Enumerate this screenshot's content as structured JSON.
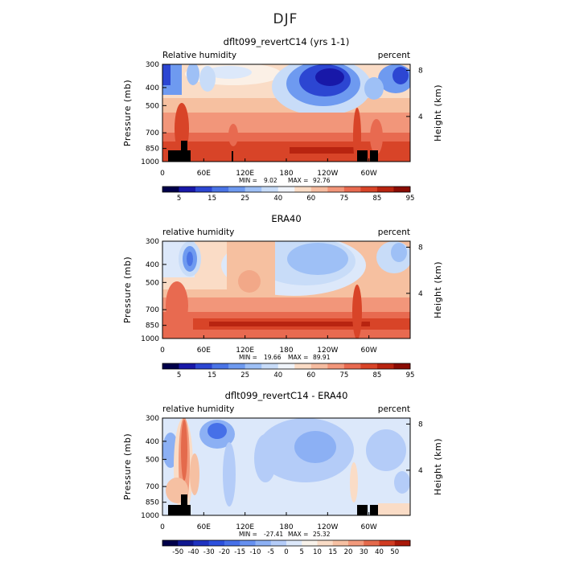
{
  "figure_title": "DJF",
  "chart_data": [
    {
      "type": "heatmap",
      "title": "dflt099_revertC14 (yrs 1-1)",
      "left_label": "Relative humidity",
      "right_label": "percent",
      "ylabel": "Pressure (mb)",
      "y2label": "Height (km)",
      "y_ticks": [
        "300",
        "400",
        "500",
        "700",
        "850",
        "1000"
      ],
      "y2_ticks": [
        "8",
        "4"
      ],
      "x_ticks": [
        "0",
        "60E",
        "120E",
        "180",
        "120W",
        "60W"
      ],
      "stats": {
        "min_label": "MIN =",
        "min": "9.02",
        "max_label": "MAX =",
        "max": "92.76"
      },
      "colorbar_labels": [
        "5",
        "15",
        "25",
        "40",
        "60",
        "75",
        "85",
        "95"
      ],
      "colors": [
        "#00004a",
        "#1818a8",
        "#2c46d2",
        "#4a74e6",
        "#6e9af0",
        "#9ec0f6",
        "#c8dcf8",
        "#f0f4fa",
        "#fadcc6",
        "#f6bca0",
        "#f2967a",
        "#e86a50",
        "#d84428",
        "#b82410",
        "#8a0c04"
      ]
    },
    {
      "type": "heatmap",
      "title": "ERA40",
      "left_label": "relative humidity",
      "right_label": "percent",
      "ylabel": "Pressure (mb)",
      "y2label": "Height (km)",
      "y_ticks": [
        "300",
        "400",
        "500",
        "700",
        "850",
        "1000"
      ],
      "y2_ticks": [
        "8",
        "4"
      ],
      "x_ticks": [
        "0",
        "60E",
        "120E",
        "180",
        "120W",
        "60W"
      ],
      "stats": {
        "min_label": "MIN =",
        "min": "19.66",
        "max_label": "MAX =",
        "max": "89.91"
      },
      "colorbar_labels": [
        "5",
        "15",
        "25",
        "40",
        "60",
        "75",
        "85",
        "95"
      ],
      "colors": [
        "#00004a",
        "#1818a8",
        "#2c46d2",
        "#4a74e6",
        "#6e9af0",
        "#9ec0f6",
        "#c8dcf8",
        "#f0f4fa",
        "#fadcc6",
        "#f6bca0",
        "#f2967a",
        "#e86a50",
        "#d84428",
        "#b82410",
        "#8a0c04"
      ]
    },
    {
      "type": "heatmap",
      "title": "dflt099_revertC14 - ERA40",
      "left_label": "relative humidity",
      "right_label": "percent",
      "ylabel": "Pressure (mb)",
      "y2label": "Height (km)",
      "y_ticks": [
        "300",
        "400",
        "500",
        "700",
        "850",
        "1000"
      ],
      "y2_ticks": [
        "8",
        "4"
      ],
      "x_ticks": [
        "0",
        "60E",
        "120E",
        "180",
        "120W",
        "60W"
      ],
      "stats": {
        "min_label": "MIN =",
        "min": "-27.41",
        "max_label": "MAX =",
        "max": "25.32"
      },
      "colorbar_labels": [
        "-50",
        "-40",
        "-30",
        "-20",
        "-15",
        "-10",
        "-5",
        "0",
        "5",
        "10",
        "15",
        "20",
        "30",
        "40",
        "50"
      ],
      "colors": [
        "#00004a",
        "#101890",
        "#1e32c0",
        "#2c50dc",
        "#4670e8",
        "#6690f0",
        "#8cb0f4",
        "#b4ccf8",
        "#dce8fa",
        "#f8f2ea",
        "#fadcc6",
        "#f6c0a2",
        "#f29a7c",
        "#e46a4c",
        "#d03c22",
        "#a81808"
      ]
    }
  ]
}
